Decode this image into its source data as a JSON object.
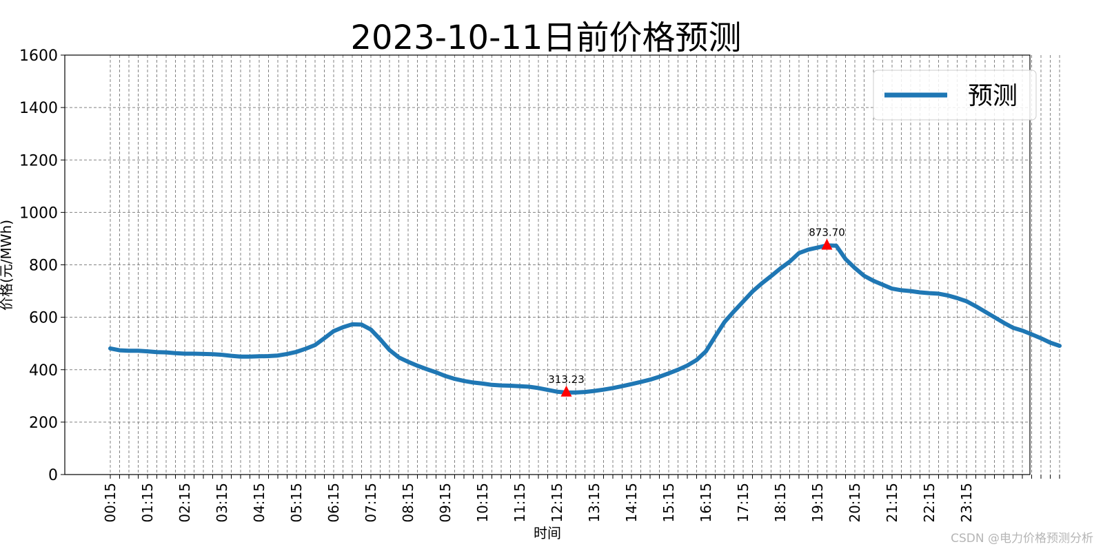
{
  "chart_data": {
    "type": "line",
    "title": "2023-10-11日前价格预测",
    "xlabel": "时间",
    "ylabel": "价格(元/MWh)",
    "ylim": [
      0,
      1600
    ],
    "yticks": [
      0,
      200,
      400,
      600,
      800,
      1000,
      1200,
      1400,
      1600
    ],
    "grid": true,
    "legend_position": "top-right",
    "xtick_labels": [
      "00:15",
      "01:15",
      "02:15",
      "03:15",
      "04:15",
      "05:15",
      "06:15",
      "07:15",
      "08:15",
      "09:15",
      "10:15",
      "11:15",
      "12:15",
      "13:15",
      "14:15",
      "15:15",
      "16:15",
      "17:15",
      "18:15",
      "19:15",
      "20:15",
      "21:15",
      "22:15",
      "23:15"
    ],
    "series": [
      {
        "name": "预测",
        "color": "#1f77b4",
        "values": [
          481,
          474,
          472,
          472,
          470,
          467,
          466,
          463,
          461,
          461,
          460,
          459,
          457,
          453,
          450,
          450,
          451,
          452,
          454,
          460,
          468,
          480,
          494,
          520,
          547,
          562,
          573,
          572,
          553,
          516,
          475,
          447,
          430,
          415,
          402,
          390,
          376,
          365,
          357,
          351,
          347,
          342,
          340,
          339,
          337,
          335,
          330,
          323,
          316,
          313,
          313,
          315,
          319,
          324,
          330,
          337,
          345,
          353,
          362,
          373,
          386,
          400,
          416,
          437,
          470,
          527,
          582,
          622,
          660,
          698,
          729,
          757,
          786,
          812,
          845,
          858,
          866,
          874,
          873,
          822,
          788,
          758,
          739,
          724,
          709,
          703,
          700,
          695,
          692,
          690,
          683,
          673,
          661,
          642,
          621,
          600,
          579,
          560,
          549,
          535,
          520,
          503,
          491
        ]
      }
    ],
    "annotations": [
      {
        "label": "313.23",
        "value": 313.23,
        "index": 49,
        "color": "#ff0000"
      },
      {
        "label": "873.70",
        "value": 873.7,
        "index": 77,
        "color": "#ff0000"
      }
    ]
  },
  "watermark": "CSDN @电力价格预测分析"
}
